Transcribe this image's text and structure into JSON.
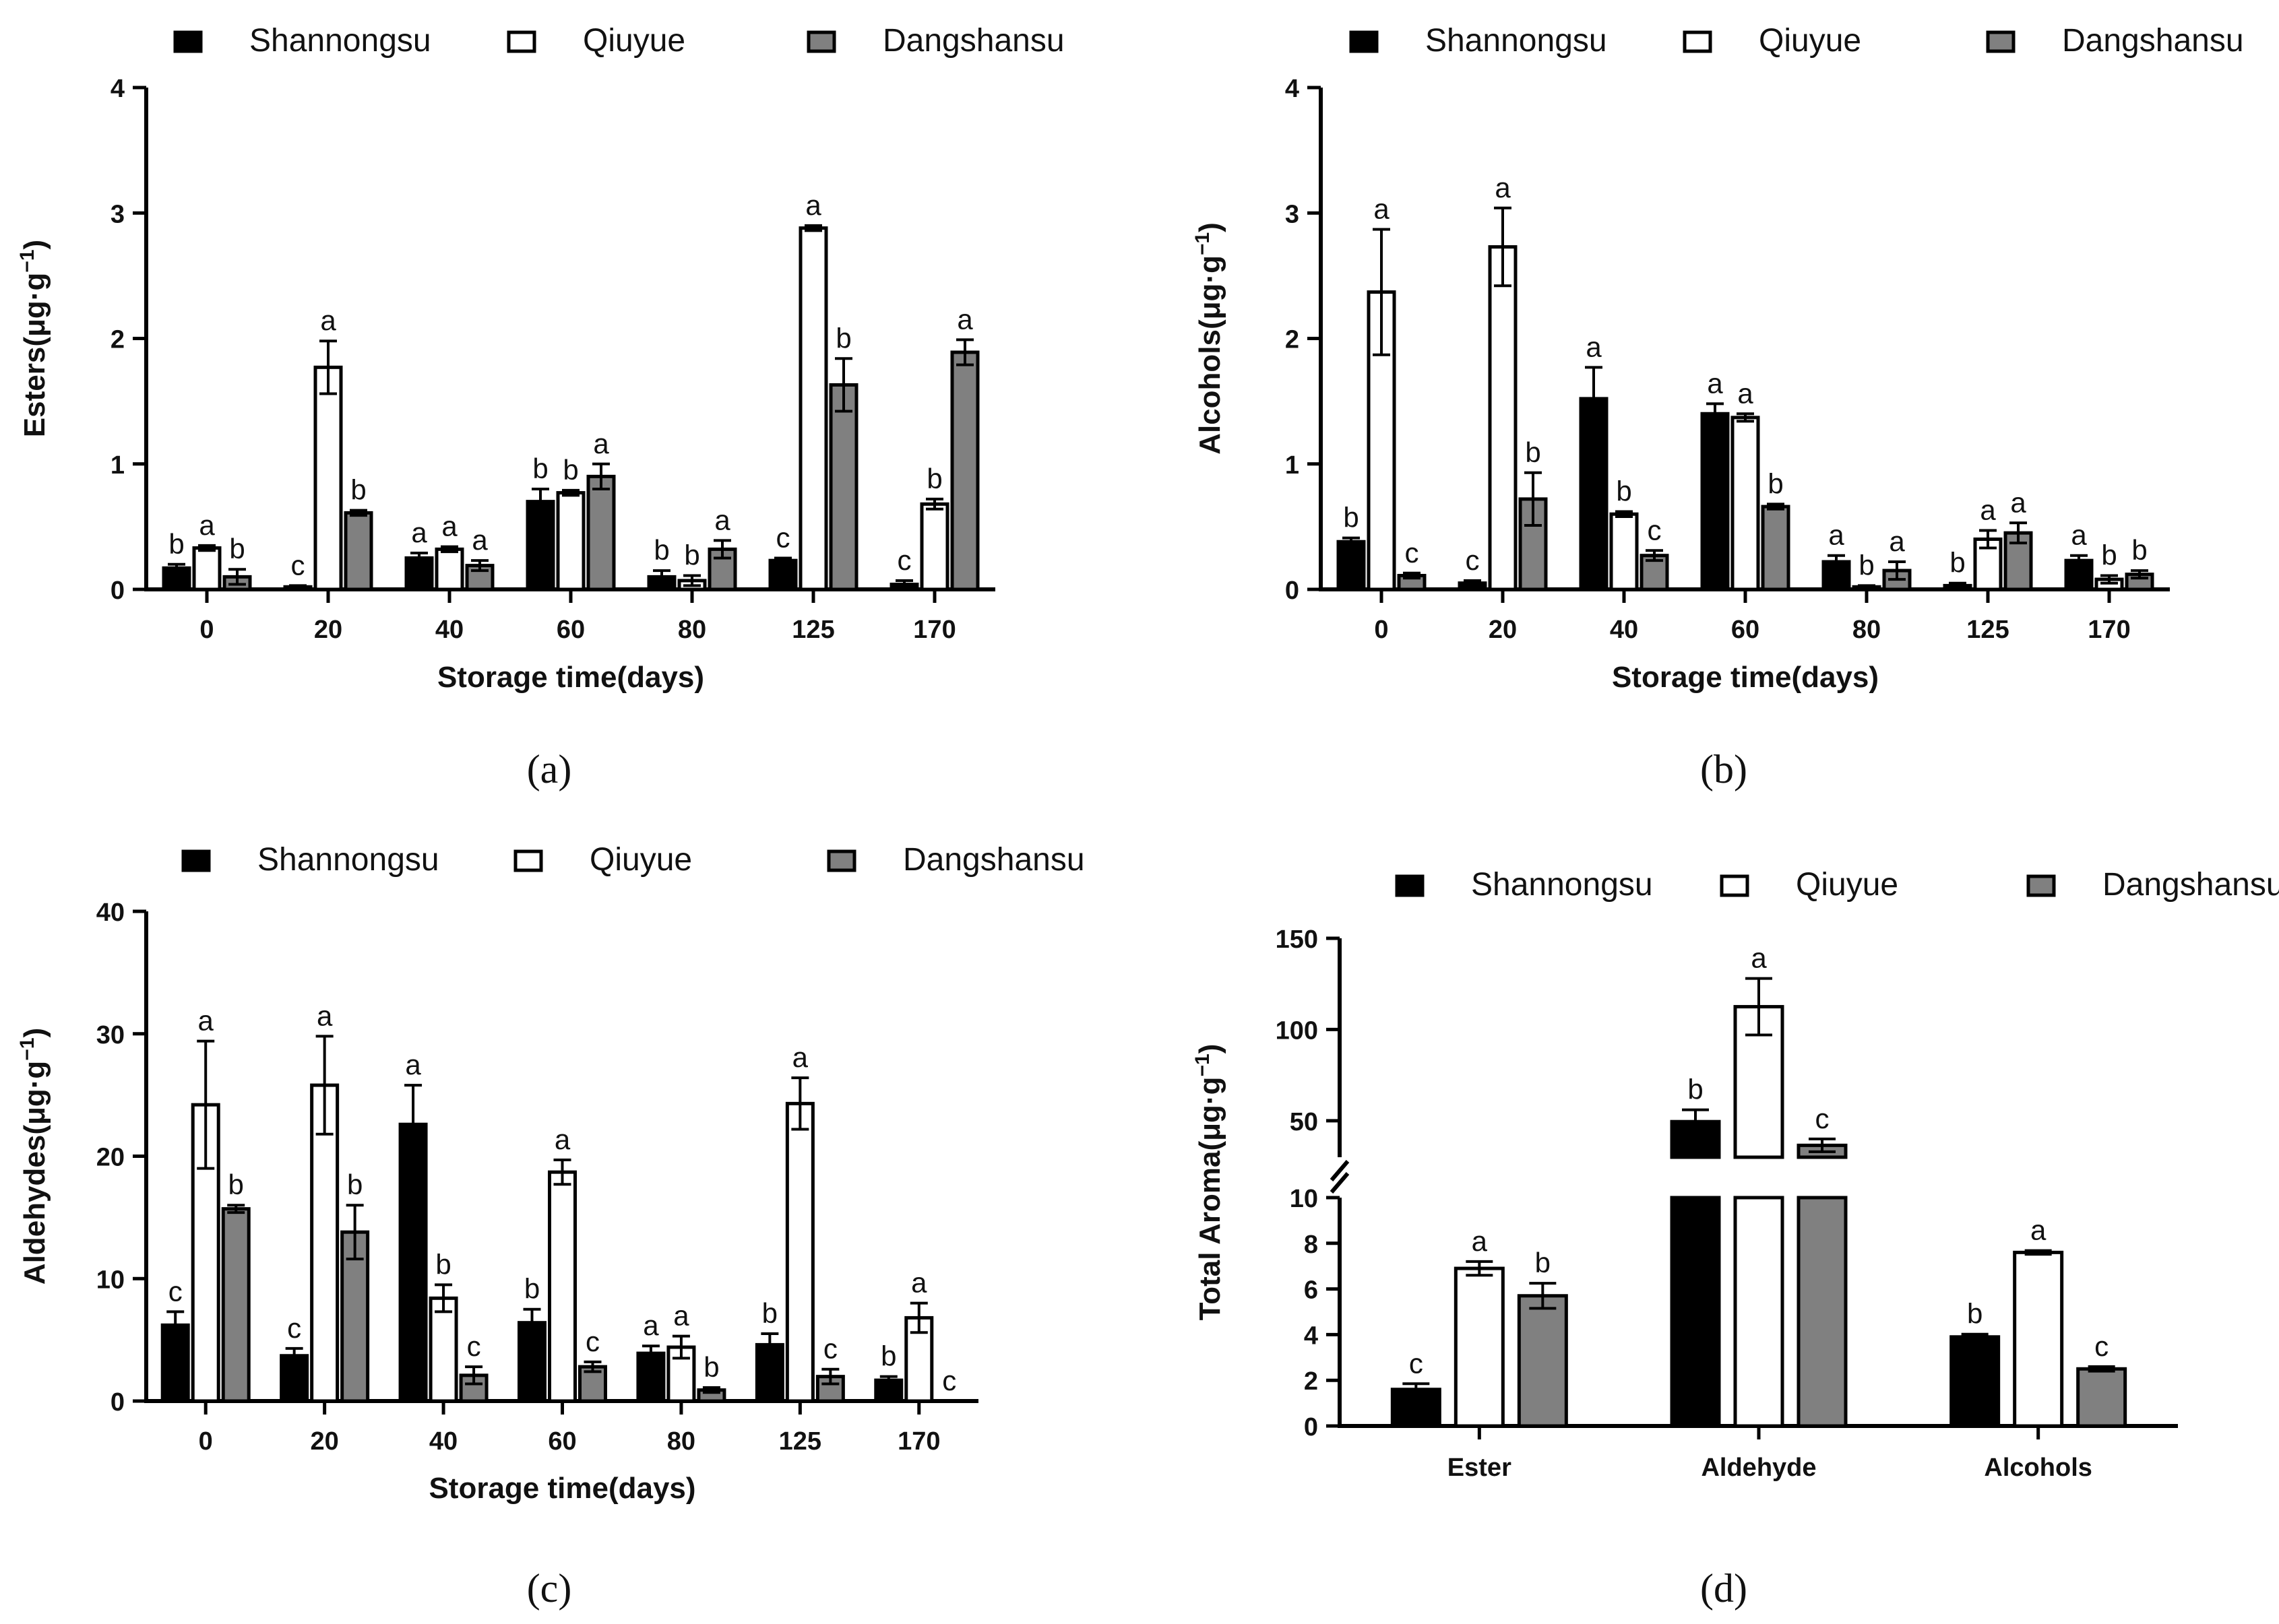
{
  "series_colors": {
    "Shannongsu": "#000000",
    "Qiuyue": "#ffffff",
    "Dangshansu": "#808080"
  },
  "chart_data": [
    {
      "id": "a",
      "panel_label": "(a)",
      "type": "bar",
      "title": "",
      "xlabel": "Storage time(days)",
      "ylabel_main": "Esters(μg·g",
      "ylabel_exp": "−1",
      "ylabel_close": ")",
      "ylim": [
        0,
        4
      ],
      "yticks": [
        "0",
        "1",
        "2",
        "3",
        "4"
      ],
      "categories": [
        "0",
        "20",
        "40",
        "60",
        "80",
        "125",
        "170"
      ],
      "legend": [
        "Shannongsu",
        "Qiuyue",
        "Dangshansu"
      ],
      "series": [
        {
          "name": "Shannongsu",
          "values": [
            0.17,
            0.02,
            0.25,
            0.7,
            0.1,
            0.23,
            0.04
          ],
          "errors": [
            0.03,
            0.01,
            0.04,
            0.1,
            0.05,
            0.02,
            0.03
          ],
          "letters": [
            "b",
            "c",
            "a",
            "b",
            "b",
            "c",
            "c"
          ]
        },
        {
          "name": "Qiuyue",
          "values": [
            0.33,
            1.77,
            0.32,
            0.77,
            0.07,
            2.88,
            0.68
          ],
          "errors": [
            0.02,
            0.21,
            0.02,
            0.02,
            0.04,
            0.02,
            0.04
          ],
          "letters": [
            "a",
            "a",
            "a",
            "b",
            "b",
            "a",
            "b"
          ]
        },
        {
          "name": "Dangshansu",
          "values": [
            0.1,
            0.61,
            0.19,
            0.9,
            0.32,
            1.63,
            1.89
          ],
          "errors": [
            0.06,
            0.02,
            0.04,
            0.1,
            0.07,
            0.21,
            0.1
          ],
          "letters": [
            "b",
            "b",
            "a",
            "a",
            "a",
            "b",
            "a"
          ]
        }
      ]
    },
    {
      "id": "b",
      "panel_label": "(b)",
      "type": "bar",
      "title": "",
      "xlabel": "Storage time(days)",
      "ylabel_main": "Alcohols(μg·g",
      "ylabel_exp": "−1",
      "ylabel_close": ")",
      "ylim": [
        0,
        4
      ],
      "yticks": [
        "0",
        "1",
        "2",
        "3",
        "4"
      ],
      "categories": [
        "0",
        "20",
        "40",
        "60",
        "80",
        "125",
        "170"
      ],
      "legend": [
        "Shannongsu",
        "Qiuyue",
        "Dangshansu"
      ],
      "series": [
        {
          "name": "Shannongsu",
          "values": [
            0.38,
            0.05,
            1.52,
            1.4,
            0.22,
            0.03,
            0.23
          ],
          "errors": [
            0.03,
            0.02,
            0.25,
            0.08,
            0.05,
            0.02,
            0.04
          ],
          "letters": [
            "b",
            "c",
            "a",
            "a",
            "a",
            "b",
            "a"
          ]
        },
        {
          "name": "Qiuyue",
          "values": [
            2.37,
            2.73,
            0.6,
            1.37,
            0.02,
            0.4,
            0.08
          ],
          "errors": [
            0.5,
            0.31,
            0.02,
            0.03,
            0.01,
            0.07,
            0.03
          ],
          "letters": [
            "a",
            "a",
            "b",
            "a",
            "b",
            "a",
            "b"
          ]
        },
        {
          "name": "Dangshansu",
          "values": [
            0.11,
            0.72,
            0.27,
            0.66,
            0.15,
            0.45,
            0.12
          ],
          "errors": [
            0.02,
            0.21,
            0.04,
            0.02,
            0.07,
            0.08,
            0.03
          ],
          "letters": [
            "c",
            "b",
            "c",
            "b",
            "a",
            "a",
            "b"
          ]
        }
      ]
    },
    {
      "id": "c",
      "panel_label": "(c)",
      "type": "bar",
      "title": "",
      "xlabel": "Storage time(days)",
      "ylabel_main": "Aldehydes(μg·g",
      "ylabel_exp": "−1",
      "ylabel_close": ")",
      "ylim": [
        0,
        40
      ],
      "yticks": [
        "0",
        "10",
        "20",
        "30",
        "40"
      ],
      "categories": [
        "0",
        "20",
        "40",
        "60",
        "80",
        "125",
        "170"
      ],
      "legend": [
        "Shannongsu",
        "Qiuyue",
        "Dangshansu"
      ],
      "series": [
        {
          "name": "Shannongsu",
          "values": [
            6.2,
            3.7,
            22.6,
            6.4,
            3.9,
            4.6,
            1.7
          ],
          "errors": [
            1.1,
            0.6,
            3.2,
            1.1,
            0.6,
            0.9,
            0.3
          ],
          "letters": [
            "c",
            "c",
            "a",
            "b",
            "a",
            "b",
            "b"
          ]
        },
        {
          "name": "Qiuyue",
          "values": [
            24.2,
            25.8,
            8.4,
            18.7,
            4.4,
            24.3,
            6.8
          ],
          "errors": [
            5.2,
            4.0,
            1.1,
            1.0,
            0.9,
            2.1,
            1.2
          ],
          "letters": [
            "a",
            "a",
            "b",
            "a",
            "a",
            "a",
            "a"
          ]
        },
        {
          "name": "Dangshansu",
          "values": [
            15.7,
            13.8,
            2.1,
            2.8,
            0.9,
            2.0,
            0.0
          ],
          "errors": [
            0.3,
            2.2,
            0.7,
            0.4,
            0.2,
            0.6,
            0.0
          ],
          "letters": [
            "b",
            "b",
            "c",
            "c",
            "b",
            "c",
            "c"
          ]
        }
      ]
    },
    {
      "id": "d",
      "panel_label": "(d)",
      "type": "bar",
      "title": "",
      "xlabel": "",
      "ylabel_main": "Total Aroma(μg·g",
      "ylabel_exp": "−1",
      "ylabel_close": ")",
      "y_axis_break": true,
      "ylim_lower": [
        0,
        10
      ],
      "ylim_upper": [
        30,
        150
      ],
      "yticks_lower": [
        "0",
        "2",
        "4",
        "6",
        "8",
        "10"
      ],
      "yticks_upper": [
        "50",
        "100",
        "150"
      ],
      "categories": [
        "Ester",
        "Aldehyde",
        "Alcohols"
      ],
      "legend": [
        "Shannongsu",
        "Qiuyue",
        "Dangshansu"
      ],
      "series": [
        {
          "name": "Shannongsu",
          "values": [
            1.6,
            49.5,
            3.9
          ],
          "errors": [
            0.25,
            6.5,
            0.12
          ],
          "letters": [
            "c",
            "b",
            "b"
          ]
        },
        {
          "name": "Qiuyue",
          "values": [
            6.9,
            112.5,
            7.6
          ],
          "errors": [
            0.3,
            15.5,
            0.08
          ],
          "letters": [
            "a",
            "a",
            "a"
          ]
        },
        {
          "name": "Dangshansu",
          "values": [
            5.7,
            36.5,
            2.5
          ],
          "errors": [
            0.55,
            3.5,
            0.1
          ],
          "letters": [
            "b",
            "c",
            "c"
          ]
        }
      ]
    }
  ]
}
